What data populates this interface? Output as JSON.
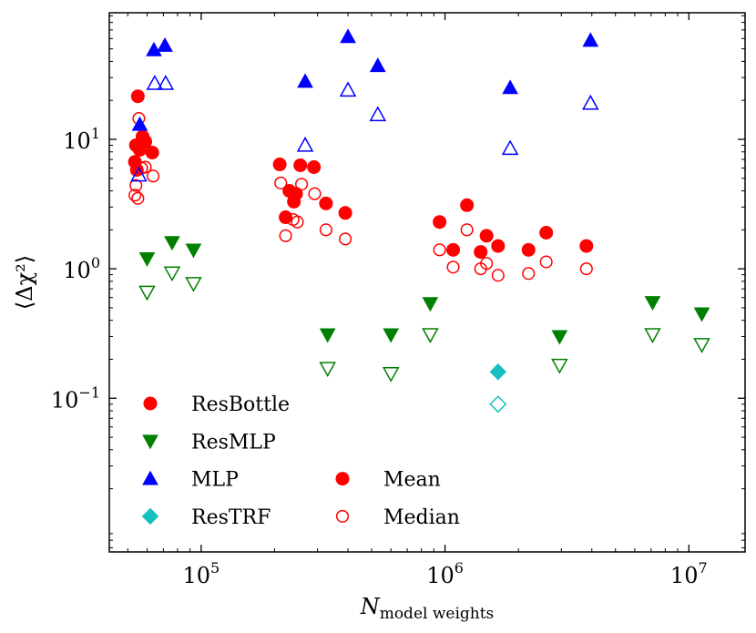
{
  "chart_data": {
    "type": "scatter",
    "x_scale": "log",
    "y_scale": "log",
    "xlim": [
      42000,
      17000000
    ],
    "ylim": [
      0.0065,
      95
    ],
    "xlabel": "N",
    "xlabel_sub": "model weights",
    "ylabel": "⟨Δχ²⟩",
    "x_ticks": [
      {
        "value": 100000,
        "base": "10",
        "exp": "5"
      },
      {
        "value": 1000000,
        "base": "10",
        "exp": "6"
      },
      {
        "value": 10000000,
        "base": "10",
        "exp": "7"
      }
    ],
    "y_ticks": [
      {
        "value": 0.1,
        "base": "10",
        "exp": "−1"
      },
      {
        "value": 1,
        "base": "10",
        "exp": "0"
      },
      {
        "value": 10,
        "base": "10",
        "exp": "1"
      }
    ],
    "series": [
      {
        "name": "ResBottle",
        "color": "#ff0000",
        "marker": "circle",
        "mean": [
          [
            55000,
            21.5
          ],
          [
            54000,
            9.0
          ],
          [
            57500,
            10.5
          ],
          [
            59000,
            9.6
          ],
          [
            56000,
            8.3
          ],
          [
            63000,
            7.9
          ],
          [
            53500,
            6.7
          ],
          [
            54500,
            5.8
          ],
          [
            210000,
            6.4
          ],
          [
            255000,
            6.3
          ],
          [
            290000,
            6.1
          ],
          [
            230000,
            4.0
          ],
          [
            245000,
            3.8
          ],
          [
            240000,
            3.3
          ],
          [
            325000,
            3.2
          ],
          [
            222000,
            2.5
          ],
          [
            390000,
            2.7
          ],
          [
            950000,
            2.3
          ],
          [
            1230000,
            3.1
          ],
          [
            1480000,
            1.8
          ],
          [
            1080000,
            1.4
          ],
          [
            1400000,
            1.35
          ],
          [
            1650000,
            1.5
          ],
          [
            2600000,
            1.9
          ],
          [
            2200000,
            1.4
          ],
          [
            3800000,
            1.5
          ]
        ],
        "median": [
          [
            55500,
            14.5
          ],
          [
            59000,
            6.1
          ],
          [
            57000,
            6.0
          ],
          [
            63500,
            5.2
          ],
          [
            54000,
            4.4
          ],
          [
            53500,
            3.7
          ],
          [
            55000,
            3.5
          ],
          [
            212000,
            4.6
          ],
          [
            258000,
            4.5
          ],
          [
            292000,
            3.8
          ],
          [
            248000,
            2.3
          ],
          [
            238000,
            2.4
          ],
          [
            222000,
            1.8
          ],
          [
            325000,
            2.0
          ],
          [
            390000,
            1.7
          ],
          [
            950000,
            1.4
          ],
          [
            1230000,
            2.0
          ],
          [
            1080000,
            1.03
          ],
          [
            1400000,
            1.0
          ],
          [
            1480000,
            1.1
          ],
          [
            1650000,
            0.89
          ],
          [
            2200000,
            0.92
          ],
          [
            2600000,
            1.13
          ],
          [
            3800000,
            1.0
          ]
        ]
      },
      {
        "name": "ResMLP",
        "color": "#008000",
        "marker": "triangle-down",
        "mean": [
          [
            60000,
            1.2
          ],
          [
            76000,
            1.6
          ],
          [
            93000,
            1.4
          ],
          [
            330000,
            0.31
          ],
          [
            600000,
            0.31
          ],
          [
            870000,
            0.54
          ],
          [
            2950000,
            0.3
          ],
          [
            7100000,
            0.55
          ],
          [
            11300000,
            0.45
          ]
        ],
        "median": [
          [
            60000,
            0.66
          ],
          [
            76000,
            0.93
          ],
          [
            93000,
            0.77
          ],
          [
            330000,
            0.17
          ],
          [
            600000,
            0.155
          ],
          [
            870000,
            0.31
          ],
          [
            2950000,
            0.18
          ],
          [
            7100000,
            0.31
          ],
          [
            11300000,
            0.26
          ]
        ]
      },
      {
        "name": "MLP",
        "color": "#0000ff",
        "marker": "triangle-up",
        "mean": [
          [
            56000,
            13.0
          ],
          [
            64000,
            49.0
          ],
          [
            71000,
            53.0
          ],
          [
            267000,
            28.0
          ],
          [
            400000,
            62.0
          ],
          [
            530000,
            37.0
          ],
          [
            1850000,
            25.0
          ],
          [
            3950000,
            58.0
          ]
        ],
        "median": [
          [
            55500,
            5.3
          ],
          [
            64500,
            27.0
          ],
          [
            71500,
            27.0
          ],
          [
            267000,
            9.0
          ],
          [
            400000,
            24.0
          ],
          [
            530000,
            15.5
          ],
          [
            1850000,
            8.5
          ],
          [
            3950000,
            19.0
          ]
        ]
      },
      {
        "name": "ResTRF",
        "color": "#17bfbf",
        "marker": "diamond",
        "mean": [
          [
            1650000,
            0.16
          ]
        ],
        "median": [
          [
            1650000,
            0.09
          ]
        ]
      }
    ],
    "legend": {
      "placement": "lower-left",
      "entries": [
        "ResBottle",
        "ResMLP",
        "MLP",
        "ResTRF"
      ],
      "style_entries": [
        {
          "label": "Mean",
          "filled": true
        },
        {
          "label": "Median",
          "filled": false
        }
      ],
      "style_color": "#ff0000"
    }
  }
}
